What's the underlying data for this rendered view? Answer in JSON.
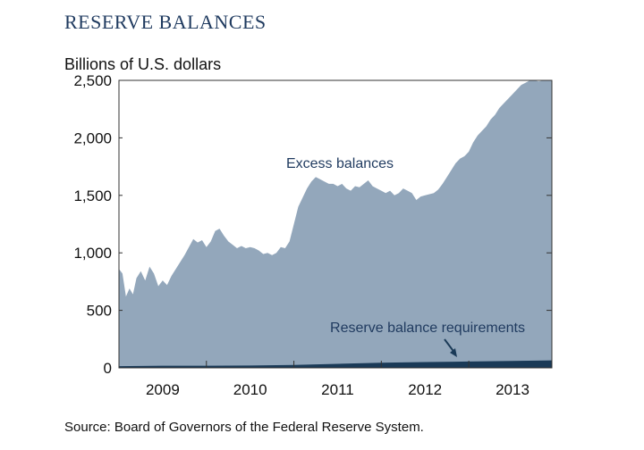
{
  "header": {
    "title": "RESERVE BALANCES",
    "ylabel": "Billions of U.S. dollars"
  },
  "footer": {
    "source": "Source: Board of Governors of the Federal Reserve System."
  },
  "colors": {
    "excess": "#93a7bb",
    "required": "#1a3a57",
    "axis": "#333333",
    "title": "#1f3a5f"
  },
  "chart_data": {
    "type": "area",
    "title": "RESERVE BALANCES",
    "ylabel": "Billions of U.S. dollars",
    "xlabel": "",
    "ylim": [
      0,
      2500
    ],
    "xlim": [
      2009.0,
      2013.95
    ],
    "yticks": [
      0,
      500,
      1000,
      1500,
      2000,
      2500
    ],
    "ytick_labels": [
      "0",
      "500",
      "1,000",
      "1,500",
      "2,000",
      "2,500"
    ],
    "xtick_labels": [
      "2009",
      "2010",
      "2011",
      "2012",
      "2013"
    ],
    "xtick_positions": [
      2009.5,
      2010.5,
      2011.5,
      2012.5,
      2013.5
    ],
    "grid": false,
    "annotations": [
      {
        "text": "Excess balances",
        "series": "Excess balances"
      },
      {
        "text": "Reserve balance requirements",
        "series": "Reserve balance requirements"
      }
    ],
    "series": [
      {
        "name": "Excess balances",
        "x": [
          2009.0,
          2009.04,
          2009.08,
          2009.12,
          2009.16,
          2009.2,
          2009.25,
          2009.3,
          2009.35,
          2009.4,
          2009.45,
          2009.5,
          2009.55,
          2009.6,
          2009.65,
          2009.7,
          2009.75,
          2009.8,
          2009.85,
          2009.9,
          2009.95,
          2010.0,
          2010.05,
          2010.1,
          2010.15,
          2010.2,
          2010.25,
          2010.3,
          2010.35,
          2010.4,
          2010.45,
          2010.5,
          2010.55,
          2010.6,
          2010.65,
          2010.7,
          2010.75,
          2010.8,
          2010.85,
          2010.9,
          2010.95,
          2011.0,
          2011.05,
          2011.1,
          2011.15,
          2011.2,
          2011.25,
          2011.3,
          2011.35,
          2011.4,
          2011.45,
          2011.5,
          2011.55,
          2011.6,
          2011.65,
          2011.7,
          2011.75,
          2011.8,
          2011.85,
          2011.9,
          2011.95,
          2012.0,
          2012.05,
          2012.1,
          2012.15,
          2012.2,
          2012.25,
          2012.3,
          2012.35,
          2012.4,
          2012.45,
          2012.5,
          2012.55,
          2012.6,
          2012.65,
          2012.7,
          2012.75,
          2012.8,
          2012.85,
          2012.9,
          2012.95,
          2013.0,
          2013.05,
          2013.1,
          2013.15,
          2013.2,
          2013.25,
          2013.3,
          2013.35,
          2013.4,
          2013.45,
          2013.5,
          2013.55,
          2013.6,
          2013.65,
          2013.7,
          2013.75,
          2013.8,
          2013.85,
          2013.9,
          2013.95
        ],
        "values": [
          860,
          820,
          620,
          690,
          640,
          780,
          840,
          760,
          880,
          820,
          710,
          760,
          720,
          800,
          860,
          920,
          980,
          1050,
          1120,
          1090,
          1110,
          1050,
          1100,
          1190,
          1210,
          1150,
          1100,
          1070,
          1040,
          1060,
          1040,
          1050,
          1040,
          1020,
          990,
          1000,
          980,
          1000,
          1050,
          1040,
          1100,
          1250,
          1400,
          1480,
          1560,
          1620,
          1660,
          1640,
          1620,
          1600,
          1600,
          1580,
          1600,
          1560,
          1540,
          1580,
          1570,
          1600,
          1630,
          1580,
          1560,
          1540,
          1520,
          1540,
          1500,
          1520,
          1560,
          1540,
          1520,
          1460,
          1490,
          1500,
          1510,
          1520,
          1550,
          1600,
          1660,
          1720,
          1780,
          1820,
          1840,
          1880,
          1960,
          2020,
          2060,
          2100,
          2160,
          2200,
          2260,
          2300,
          2340,
          2380,
          2420,
          2460,
          2480,
          2500,
          2500,
          2490,
          2500,
          2500,
          2500
        ]
      },
      {
        "name": "Reserve balance requirements",
        "x": [
          2009.0,
          2009.5,
          2010.0,
          2010.5,
          2011.0,
          2011.5,
          2012.0,
          2012.5,
          2013.0,
          2013.5,
          2013.95
        ],
        "values": [
          15,
          18,
          18,
          20,
          25,
          35,
          45,
          50,
          55,
          60,
          65
        ]
      }
    ]
  }
}
